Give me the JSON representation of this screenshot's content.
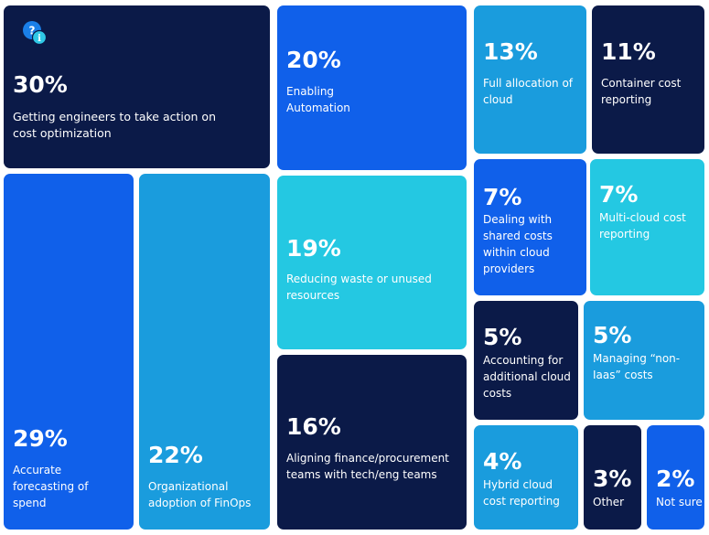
{
  "colors": {
    "navy": "#0b1a48",
    "blue": "#1060ea",
    "mid_blue": "#1a9cdd",
    "light_cyan": "#24c8e2",
    "text": "#ffffff"
  },
  "icons": {
    "help": "question-info-icon"
  },
  "chart_data": {
    "type": "treemap",
    "title": "",
    "unit": "%",
    "items": [
      {
        "value": 30,
        "value_label": "30%",
        "label": "Getting engineers to take action on cost optimization",
        "color": "navy"
      },
      {
        "value": 29,
        "value_label": "29%",
        "label": "Accurate forecasting of spend",
        "color": "blue"
      },
      {
        "value": 22,
        "value_label": "22%",
        "label": "Organizational adoption of FinOps",
        "color": "mid_blue"
      },
      {
        "value": 20,
        "value_label": "20%",
        "label": "Enabling Automation",
        "color": "blue"
      },
      {
        "value": 19,
        "value_label": "19%",
        "label": "Reducing waste or unused resources",
        "color": "light_cyan"
      },
      {
        "value": 16,
        "value_label": "16%",
        "label": "Aligning finance/procurement teams with tech/eng teams",
        "color": "navy"
      },
      {
        "value": 13,
        "value_label": "13%",
        "label": "Full allocation of cloud",
        "color": "mid_blue"
      },
      {
        "value": 11,
        "value_label": "11%",
        "label": "Container cost reporting",
        "color": "navy"
      },
      {
        "value": 7,
        "value_label": "7%",
        "label": "Dealing with shared costs within cloud providers",
        "color": "blue"
      },
      {
        "value": 7,
        "value_label": "7%",
        "label": "Multi-cloud cost reporting",
        "color": "light_cyan"
      },
      {
        "value": 5,
        "value_label": "5%",
        "label": "Accounting for additional cloud costs",
        "color": "navy"
      },
      {
        "value": 5,
        "value_label": "5%",
        "label": "Managing “non-Iaas” costs",
        "color": "mid_blue"
      },
      {
        "value": 4,
        "value_label": "4%",
        "label": "Hybrid cloud cost reporting",
        "color": "mid_blue"
      },
      {
        "value": 3,
        "value_label": "3%",
        "label": "Other",
        "color": "navy"
      },
      {
        "value": 2,
        "value_label": "2%",
        "label": "Not sure",
        "color": "blue"
      }
    ]
  }
}
